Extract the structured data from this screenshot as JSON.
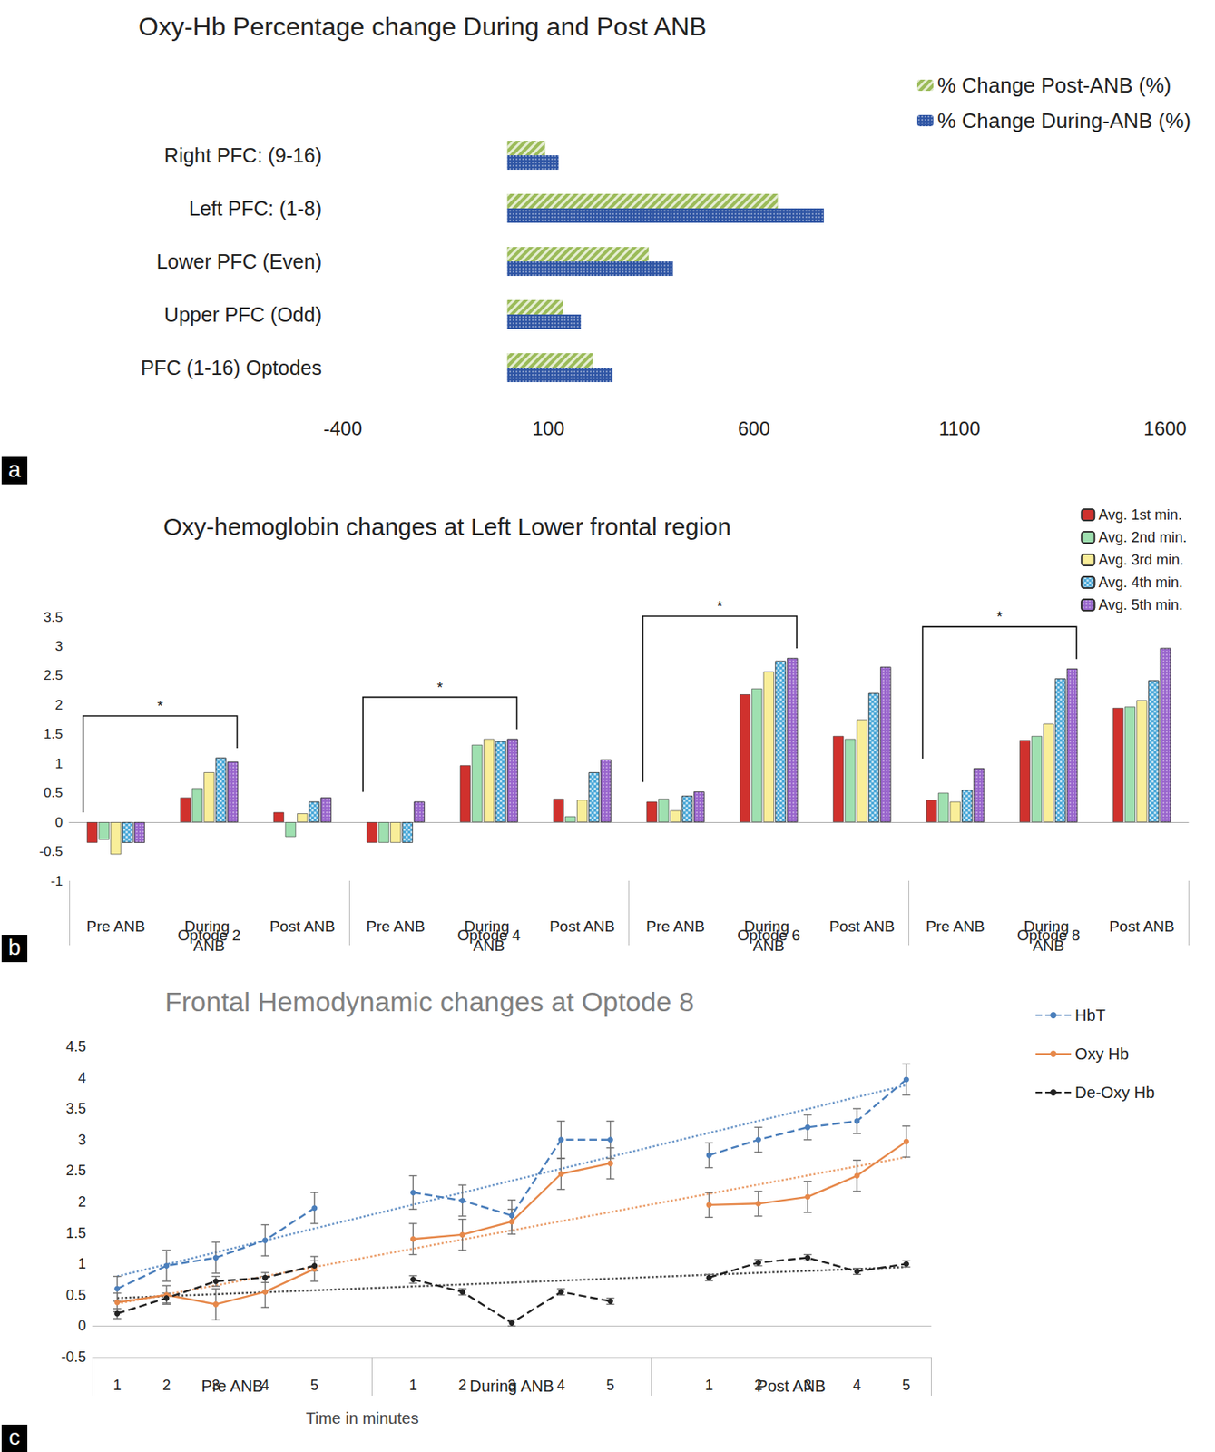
{
  "chart_data": [
    {
      "panel_label": "a",
      "type": "bar",
      "orientation": "horizontal",
      "title": "Oxy-Hb Percentage change During and Post ANB",
      "categories": [
        "Right PFC: (9-16)",
        "Left PFC: (1-8)",
        "Lower PFC (Even)",
        "Upper PFC (Odd)",
        "PFC (1-16) Optodes"
      ],
      "series": [
        {
          "name": "% Change Post-ANB (%)",
          "color": "#9bbb59",
          "values": [
            92,
            658,
            344,
            136,
            208
          ]
        },
        {
          "name": "% Change During-ANB (%)",
          "color": "#2f55a4",
          "values": [
            125,
            770,
            403,
            179,
            256
          ]
        }
      ],
      "xlim": [
        -400,
        1600
      ],
      "xticks": [
        -400,
        100,
        600,
        1100,
        1600
      ],
      "grid": false,
      "legend": "top-right"
    },
    {
      "panel_label": "b",
      "type": "bar",
      "title": "Oxy-hemoglobin changes at Left Lower frontal region",
      "groups": [
        "Optode 2",
        "Optode 4",
        "Optode 6",
        "Optode 8"
      ],
      "categories": [
        "Pre ANB",
        "During ANB",
        "Post ANB",
        "Pre ANB",
        "During ANB",
        "Post ANB",
        "Pre ANB",
        "During ANB",
        "Post ANB",
        "Pre ANB",
        "During ANB",
        "Post ANB"
      ],
      "series": [
        {
          "name": "Avg. 1st min.",
          "color": "#d0312d",
          "values": [
            -0.35,
            0.42,
            0.17,
            -0.35,
            0.97,
            0.4,
            0.35,
            2.18,
            1.47,
            0.38,
            1.4,
            1.95
          ]
        },
        {
          "name": "Avg. 2nd min.",
          "color": "#9fe0b0",
          "values": [
            -0.3,
            0.58,
            -0.25,
            -0.35,
            1.32,
            0.1,
            0.4,
            2.28,
            1.42,
            0.5,
            1.47,
            1.97
          ]
        },
        {
          "name": "Avg. 3rd min.",
          "color": "#f9ee99",
          "values": [
            -0.55,
            0.85,
            0.15,
            -0.35,
            1.42,
            0.38,
            0.2,
            2.57,
            1.75,
            0.35,
            1.68,
            2.08
          ]
        },
        {
          "name": "Avg. 4th min.",
          "color": "#4aa8d8",
          "values": [
            -0.35,
            1.1,
            0.35,
            -0.35,
            1.38,
            0.85,
            0.45,
            2.75,
            2.2,
            0.55,
            2.45,
            2.42
          ]
        },
        {
          "name": "Avg. 5th min.",
          "color": "#9966cc",
          "values": [
            -0.35,
            1.03,
            0.42,
            0.35,
            1.42,
            1.07,
            0.52,
            2.8,
            2.65,
            0.92,
            2.62,
            2.97
          ]
        }
      ],
      "annotations": [
        {
          "text": "*",
          "group": "Optode 2",
          "from": "Pre ANB",
          "to": "During ANB"
        },
        {
          "text": "*",
          "group": "Optode 4",
          "from": "Pre ANB",
          "to": "During ANB"
        },
        {
          "text": "*",
          "group": "Optode 6",
          "from": "Pre ANB",
          "to": "During ANB"
        },
        {
          "text": "*",
          "group": "Optode 8",
          "from": "Pre ANB",
          "to": "During ANB"
        }
      ],
      "ylim": [
        -1,
        3.5
      ],
      "yticks": [
        -1,
        -0.5,
        0,
        0.5,
        1,
        1.5,
        2,
        2.5,
        3,
        3.5
      ],
      "grid": false,
      "legend": "top-right"
    },
    {
      "panel_label": "c",
      "type": "line",
      "title": "Frontal Hemodynamic changes at Optode 8",
      "x_label": "Time in minutes",
      "groups": [
        "Pre ANB",
        "During ANB",
        "Post ANB"
      ],
      "categories": [
        "1",
        "2",
        "3",
        "4",
        "5",
        null,
        "1",
        "2",
        "3",
        "4",
        "5",
        null,
        "1",
        "2",
        "3",
        "4",
        "5"
      ],
      "series": [
        {
          "name": "HbT",
          "color": "#4a7ebb",
          "marker": "circle",
          "line_style": "dashed",
          "values": [
            0.6,
            0.97,
            1.1,
            1.38,
            1.9,
            null,
            2.15,
            2.02,
            1.78,
            3.0,
            3.0,
            null,
            2.75,
            3.0,
            3.2,
            3.3,
            3.97
          ],
          "errors": [
            0.2,
            0.25,
            0.25,
            0.25,
            0.25,
            null,
            0.27,
            0.25,
            0.25,
            0.3,
            0.3,
            null,
            0.2,
            0.2,
            0.2,
            0.2,
            0.25
          ],
          "trend": [
            0.8,
            3.88
          ]
        },
        {
          "name": "Oxy Hb",
          "color": "#e6884a",
          "marker": "circle",
          "line_style": "solid",
          "values": [
            0.38,
            0.5,
            0.35,
            0.55,
            0.92,
            null,
            1.4,
            1.47,
            1.68,
            2.45,
            2.62,
            null,
            1.95,
            1.97,
            2.08,
            2.42,
            2.97
          ],
          "errors": [
            0.15,
            0.15,
            0.25,
            0.25,
            0.2,
            null,
            0.25,
            0.25,
            0.2,
            0.25,
            0.25,
            null,
            0.2,
            0.2,
            0.25,
            0.25,
            0.25
          ],
          "trend": [
            0.36,
            2.72
          ]
        },
        {
          "name": "De-Oxy Hb",
          "color": "#222222",
          "marker": "circle",
          "line_style": "dashed",
          "values": [
            0.2,
            0.45,
            0.72,
            0.78,
            0.97,
            null,
            0.75,
            0.55,
            0.05,
            0.55,
            0.4,
            null,
            0.78,
            1.02,
            1.1,
            0.88,
            1.0
          ],
          "errors": [
            0.08,
            0.08,
            0.08,
            0.08,
            0.08,
            null,
            0.06,
            0.05,
            0.05,
            0.05,
            0.05,
            null,
            0.05,
            0.05,
            0.05,
            0.05,
            0.05
          ],
          "trend": [
            0.45,
            0.95
          ]
        }
      ],
      "ylim": [
        -0.5,
        4.5
      ],
      "yticks": [
        -0.5,
        0,
        0.5,
        1,
        1.5,
        2,
        2.5,
        3,
        3.5,
        4,
        4.5
      ],
      "grid": false,
      "legend": "top-right"
    }
  ]
}
